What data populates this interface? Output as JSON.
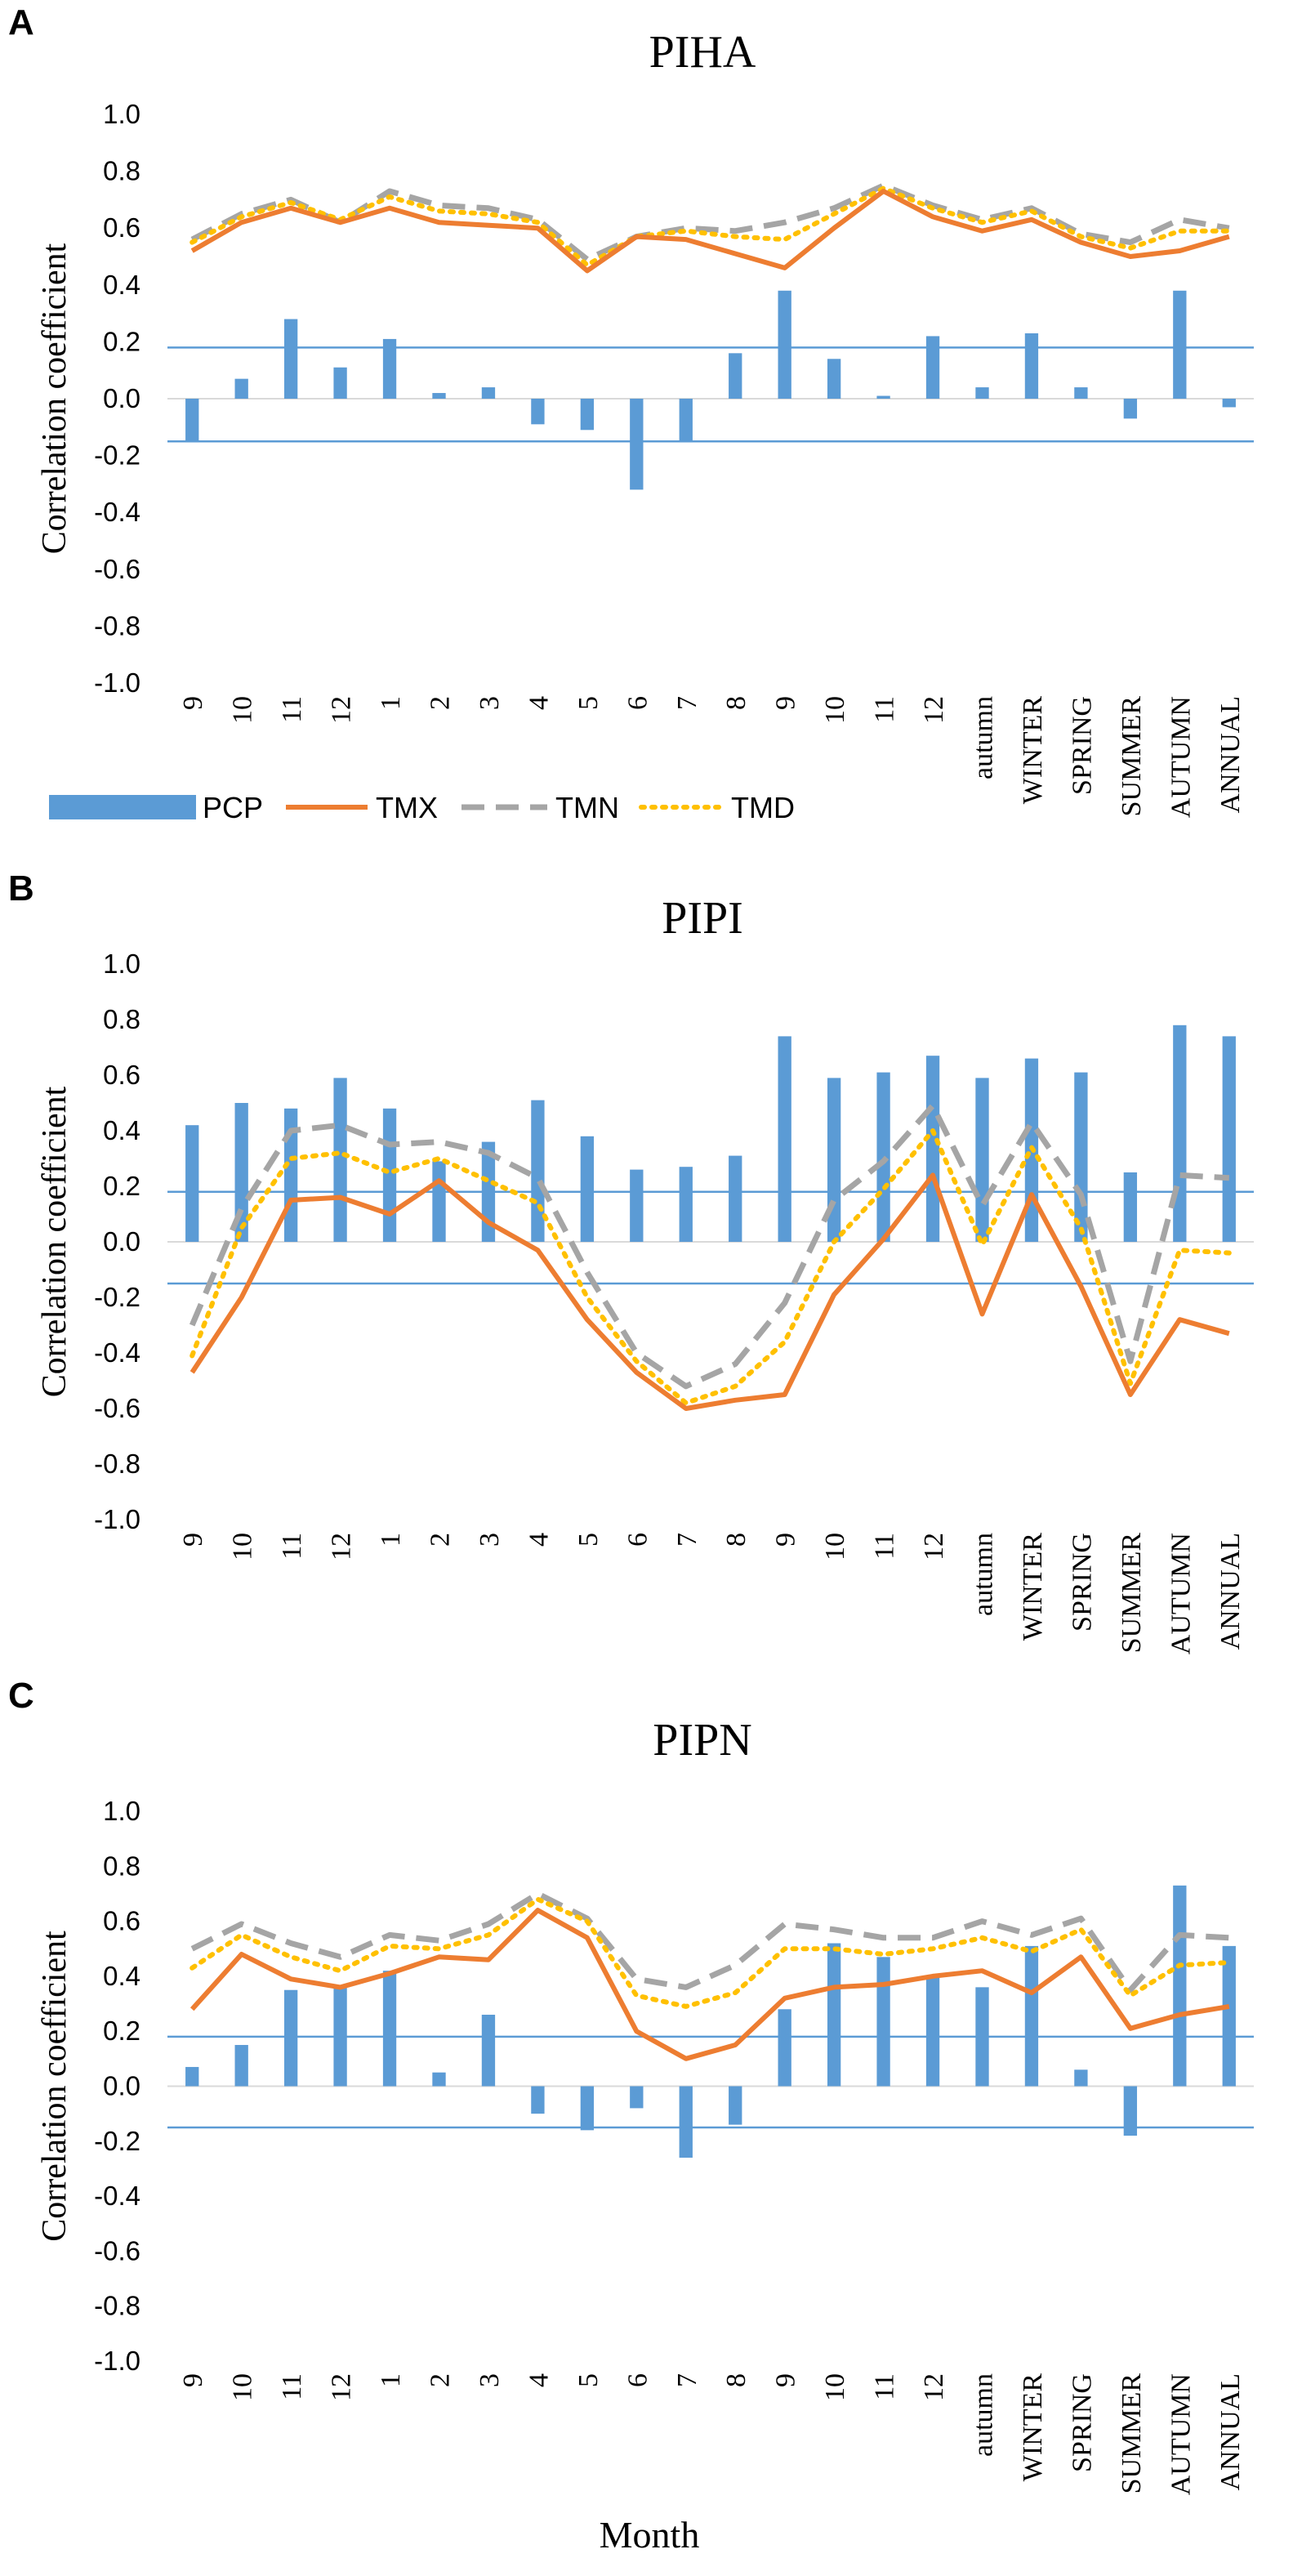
{
  "legend": {
    "pcp": "PCP",
    "tmx": "TMX",
    "tmn": "TMN",
    "tmd": "TMD"
  },
  "xlabel": "Month",
  "colors": {
    "pcp": "#5B9BD5",
    "tmx": "#ED7D31",
    "tmn": "#A5A5A5",
    "tmd": "#FFC000",
    "threshold": "#5B9BD5",
    "zero": "#D9D9D9"
  },
  "chart_data": [
    {
      "type": "bar+line",
      "panel": "A",
      "title": "PIHA",
      "ylabel": "Correlation coefficient",
      "ylim": [
        -1.0,
        1.0
      ],
      "yticks": [
        "1.0",
        "0.8",
        "0.6",
        "0.4",
        "0.2",
        "0.0",
        "-0.2",
        "-0.4",
        "-0.6",
        "-0.8",
        "-1.0"
      ],
      "categories": [
        "9",
        "10",
        "11",
        "12",
        "1",
        "2",
        "3",
        "4",
        "5",
        "6",
        "7",
        "8",
        "9",
        "10",
        "11",
        "12",
        "autumn",
        "WINTER",
        "SPRING",
        "SUMMER",
        "AUTUMN",
        "ANNUAL"
      ],
      "significance": [
        0.18,
        -0.15
      ],
      "series": [
        {
          "name": "PCP",
          "kind": "bar",
          "values": [
            -0.15,
            0.07,
            0.28,
            0.11,
            0.21,
            0.02,
            0.04,
            -0.09,
            -0.11,
            -0.32,
            -0.15,
            0.16,
            0.38,
            0.14,
            0.01,
            0.22,
            0.04,
            0.23,
            0.04,
            -0.07,
            0.38,
            -0.03
          ]
        },
        {
          "name": "TMX",
          "kind": "line",
          "values": [
            0.52,
            0.62,
            0.67,
            0.62,
            0.67,
            0.62,
            0.61,
            0.6,
            0.45,
            0.57,
            0.56,
            0.51,
            0.46,
            0.6,
            0.73,
            0.64,
            0.59,
            0.63,
            0.55,
            0.5,
            0.52,
            0.57
          ]
        },
        {
          "name": "TMN",
          "kind": "line",
          "values": [
            0.56,
            0.65,
            0.7,
            0.62,
            0.73,
            0.68,
            0.67,
            0.63,
            0.49,
            0.57,
            0.6,
            0.59,
            0.62,
            0.67,
            0.75,
            0.68,
            0.63,
            0.67,
            0.58,
            0.55,
            0.63,
            0.6
          ]
        },
        {
          "name": "TMD",
          "kind": "line",
          "values": [
            0.55,
            0.64,
            0.69,
            0.63,
            0.71,
            0.66,
            0.65,
            0.62,
            0.47,
            0.57,
            0.59,
            0.57,
            0.56,
            0.65,
            0.74,
            0.67,
            0.62,
            0.66,
            0.57,
            0.53,
            0.59,
            0.59
          ]
        }
      ]
    },
    {
      "type": "bar+line",
      "panel": "B",
      "title": "PIPI",
      "ylabel": "Correlation coefficient",
      "ylim": [
        -1.0,
        1.0
      ],
      "yticks": [
        "1.0",
        "0.8",
        "0.6",
        "0.4",
        "0.2",
        "0.0",
        "-0.2",
        "-0.4",
        "-0.6",
        "-0.8",
        "-1.0"
      ],
      "categories": [
        "9",
        "10",
        "11",
        "12",
        "1",
        "2",
        "3",
        "4",
        "5",
        "6",
        "7",
        "8",
        "9",
        "10",
        "11",
        "12",
        "autumn",
        "WINTER",
        "SPRING",
        "SUMMER",
        "AUTUMN",
        "ANNUAL"
      ],
      "significance": [
        0.18,
        -0.15
      ],
      "series": [
        {
          "name": "PCP",
          "kind": "bar",
          "values": [
            0.42,
            0.5,
            0.48,
            0.59,
            0.48,
            0.29,
            0.36,
            0.51,
            0.38,
            0.26,
            0.27,
            0.31,
            0.74,
            0.59,
            0.61,
            0.67,
            0.59,
            0.66,
            0.61,
            0.25,
            0.78,
            0.74
          ]
        },
        {
          "name": "TMX",
          "kind": "line",
          "values": [
            -0.47,
            -0.2,
            0.15,
            0.16,
            0.1,
            0.22,
            0.07,
            -0.03,
            -0.28,
            -0.47,
            -0.6,
            -0.57,
            -0.55,
            -0.19,
            0.01,
            0.24,
            -0.26,
            0.17,
            -0.16,
            -0.55,
            -0.28,
            -0.33
          ]
        },
        {
          "name": "TMN",
          "kind": "line",
          "values": [
            -0.3,
            0.12,
            0.4,
            0.42,
            0.35,
            0.36,
            0.32,
            0.23,
            -0.11,
            -0.4,
            -0.52,
            -0.44,
            -0.22,
            0.15,
            0.29,
            0.49,
            0.13,
            0.43,
            0.17,
            -0.43,
            0.24,
            0.23
          ]
        },
        {
          "name": "TMD",
          "kind": "line",
          "values": [
            -0.41,
            0.05,
            0.3,
            0.32,
            0.25,
            0.3,
            0.22,
            0.14,
            -0.2,
            -0.43,
            -0.58,
            -0.52,
            -0.36,
            0.0,
            0.19,
            0.4,
            -0.01,
            0.34,
            0.05,
            -0.51,
            -0.03,
            -0.04
          ]
        }
      ]
    },
    {
      "type": "bar+line",
      "panel": "C",
      "title": "PIPN",
      "ylabel": "Correlation coefficient",
      "ylim": [
        -1.0,
        1.0
      ],
      "yticks": [
        "1.0",
        "0.8",
        "0.6",
        "0.4",
        "0.2",
        "0.0",
        "-0.2",
        "-0.4",
        "-0.6",
        "-0.8",
        "-1.0"
      ],
      "categories": [
        "9",
        "10",
        "11",
        "12",
        "1",
        "2",
        "3",
        "4",
        "5",
        "6",
        "7",
        "8",
        "9",
        "10",
        "11",
        "12",
        "autumn",
        "WINTER",
        "SPRING",
        "SUMMER",
        "AUTUMN",
        "ANNUAL"
      ],
      "significance": [
        0.18,
        -0.15
      ],
      "series": [
        {
          "name": "PCP",
          "kind": "bar",
          "values": [
            0.07,
            0.15,
            0.35,
            0.36,
            0.42,
            0.05,
            0.26,
            -0.1,
            -0.16,
            -0.08,
            -0.26,
            -0.14,
            0.28,
            0.52,
            0.47,
            0.4,
            0.36,
            0.51,
            0.06,
            -0.18,
            0.73,
            0.51
          ]
        },
        {
          "name": "TMX",
          "kind": "line",
          "values": [
            0.28,
            0.48,
            0.39,
            0.36,
            0.41,
            0.47,
            0.46,
            0.64,
            0.54,
            0.2,
            0.1,
            0.15,
            0.32,
            0.36,
            0.37,
            0.4,
            0.42,
            0.34,
            0.47,
            0.21,
            0.26,
            0.29
          ]
        },
        {
          "name": "TMN",
          "kind": "line",
          "values": [
            0.5,
            0.59,
            0.52,
            0.47,
            0.55,
            0.53,
            0.59,
            0.7,
            0.61,
            0.39,
            0.36,
            0.44,
            0.59,
            0.57,
            0.54,
            0.54,
            0.6,
            0.55,
            0.61,
            0.35,
            0.55,
            0.54
          ]
        },
        {
          "name": "TMD",
          "kind": "line",
          "values": [
            0.43,
            0.55,
            0.47,
            0.42,
            0.51,
            0.5,
            0.55,
            0.68,
            0.6,
            0.33,
            0.29,
            0.34,
            0.5,
            0.5,
            0.48,
            0.5,
            0.54,
            0.49,
            0.57,
            0.33,
            0.44,
            0.45
          ]
        }
      ]
    }
  ]
}
